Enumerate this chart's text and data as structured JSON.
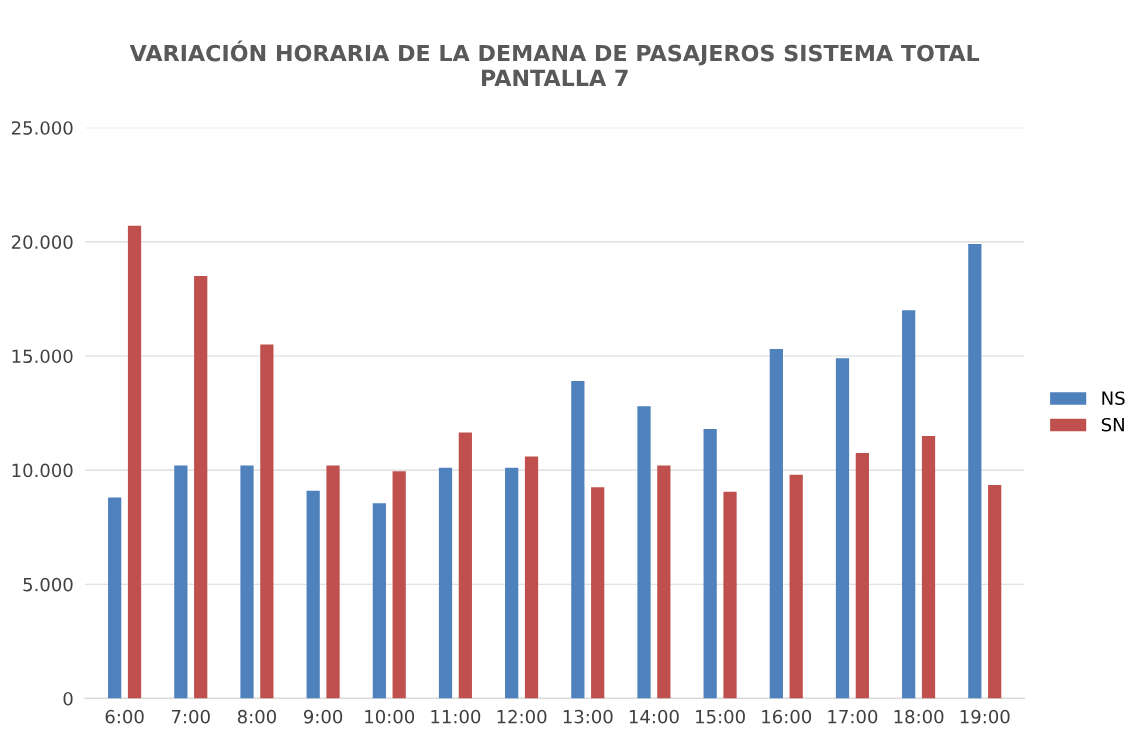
{
  "chart_data": {
    "type": "bar",
    "title": "VARIACIÓN HORARIA DE LA DEMANA DE PASAJEROS SISTEMA TOTAL\nPANTALLA 7",
    "categories": [
      "6:00",
      "7:00",
      "8:00",
      "9:00",
      "10:00",
      "11:00",
      "12:00",
      "13:00",
      "14:00",
      "15:00",
      "16:00",
      "17:00",
      "18:00",
      "19:00"
    ],
    "series": [
      {
        "name": "NS",
        "color": "#4f81bd",
        "values": [
          8800,
          10200,
          10200,
          9100,
          8550,
          10100,
          10100,
          13900,
          12800,
          11800,
          15300,
          14900,
          17000,
          19900
        ]
      },
      {
        "name": "SN",
        "color": "#c0504d",
        "values": [
          20700,
          18500,
          15500,
          10200,
          9950,
          11650,
          10600,
          9250,
          10200,
          9050,
          9800,
          10750,
          11500,
          9350
        ]
      }
    ],
    "ylim": [
      0,
      25000
    ],
    "yticks": [
      0,
      {
        "value": 5000,
        "label": "5.000"
      },
      {
        "value": 10000,
        "label": "10.000"
      },
      {
        "value": 15000,
        "label": "15.000"
      },
      {
        "value": 20000,
        "label": "20.000"
      },
      {
        "value": 25000,
        "label": "25.000"
      }
    ],
    "grid": "y",
    "legend": "right"
  }
}
